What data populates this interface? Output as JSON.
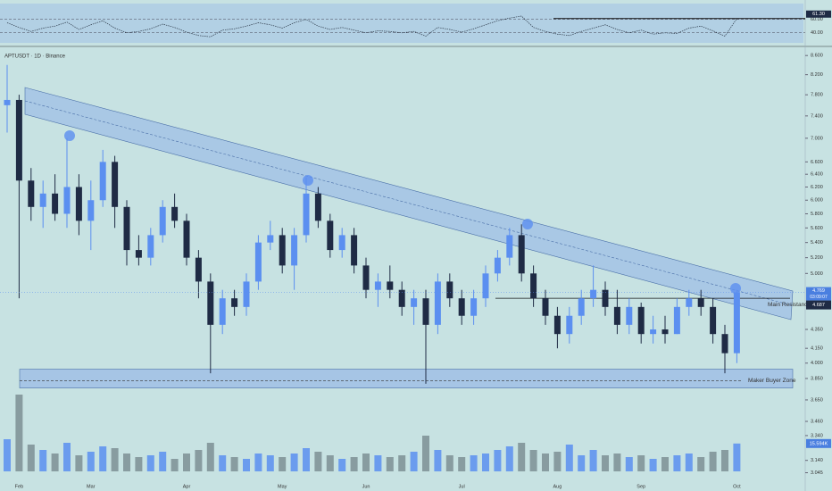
{
  "chart_data": [
    {
      "type": "candlestick",
      "title": "APTUSDT · 1D · Binance",
      "log_scale": true,
      "categories": [
        null,
        "Feb",
        null,
        null,
        null,
        null,
        null,
        "Mar",
        null,
        null,
        null,
        null,
        null,
        null,
        null,
        "Apr",
        null,
        null,
        null,
        null,
        null,
        null,
        null,
        "May",
        null,
        null,
        null,
        null,
        null,
        null,
        "Jun",
        null,
        null,
        null,
        null,
        null,
        null,
        null,
        "Jul",
        null,
        null,
        null,
        null,
        null,
        null,
        null,
        "Aug",
        null,
        null,
        null,
        null,
        null,
        null,
        "Sep",
        null,
        null,
        null,
        null,
        null,
        null,
        null,
        "Oct"
      ],
      "open": [
        7.6,
        7.7,
        6.3,
        5.9,
        6.1,
        5.8,
        6.2,
        5.7,
        6.0,
        6.6,
        5.9,
        5.3,
        5.2,
        5.5,
        5.9,
        5.7,
        5.2,
        4.9,
        4.4,
        4.7,
        4.6,
        4.9,
        5.4,
        5.5,
        5.1,
        5.5,
        6.1,
        5.7,
        5.3,
        5.5,
        5.1,
        4.8,
        4.9,
        4.8,
        4.6,
        4.7,
        4.4,
        4.9,
        4.7,
        4.5,
        4.7,
        5.0,
        5.2,
        5.5,
        5.0,
        4.7,
        4.5,
        4.3,
        4.5,
        4.7,
        4.8,
        4.6,
        4.4,
        4.6,
        4.3,
        4.35,
        4.3,
        4.6,
        4.7,
        4.6,
        4.3,
        4.1
      ],
      "high": [
        8.4,
        7.8,
        6.5,
        6.3,
        6.4,
        7.0,
        6.4,
        6.3,
        6.8,
        6.7,
        6.0,
        5.5,
        5.6,
        6.0,
        6.1,
        5.8,
        5.3,
        5.0,
        4.8,
        4.8,
        5.0,
        5.5,
        5.7,
        5.6,
        5.6,
        6.35,
        6.2,
        5.8,
        5.6,
        5.6,
        5.2,
        5.0,
        5.1,
        4.9,
        4.8,
        4.8,
        5.0,
        5.0,
        4.8,
        4.8,
        5.1,
        5.3,
        5.6,
        5.65,
        5.1,
        4.8,
        4.6,
        4.6,
        4.8,
        5.1,
        4.9,
        4.8,
        4.7,
        4.65,
        4.5,
        4.5,
        4.7,
        4.8,
        4.8,
        4.7,
        4.4,
        4.8
      ],
      "low": [
        7.1,
        4.7,
        5.7,
        5.6,
        5.7,
        5.6,
        5.5,
        5.3,
        5.9,
        5.6,
        5.1,
        5.1,
        5.1,
        5.4,
        5.6,
        5.1,
        4.7,
        3.9,
        4.3,
        4.5,
        4.5,
        4.8,
        5.3,
        5.0,
        4.8,
        5.4,
        5.6,
        5.2,
        5.2,
        5.0,
        4.7,
        4.6,
        4.7,
        4.5,
        4.4,
        3.8,
        4.3,
        4.6,
        4.4,
        4.4,
        4.6,
        4.9,
        5.1,
        4.9,
        4.6,
        4.4,
        4.15,
        4.2,
        4.4,
        4.6,
        4.5,
        4.3,
        4.3,
        4.2,
        4.2,
        4.2,
        4.3,
        4.5,
        4.5,
        4.2,
        3.9,
        4.0
      ],
      "close": [
        7.7,
        6.3,
        5.9,
        6.1,
        5.8,
        6.2,
        5.7,
        6.0,
        6.6,
        5.9,
        5.3,
        5.2,
        5.5,
        5.9,
        5.7,
        5.2,
        4.9,
        4.4,
        4.7,
        4.6,
        4.9,
        5.4,
        5.5,
        5.1,
        5.5,
        6.1,
        5.7,
        5.3,
        5.5,
        5.1,
        4.8,
        4.9,
        4.8,
        4.6,
        4.7,
        4.4,
        4.9,
        4.7,
        4.5,
        4.7,
        5.0,
        5.2,
        5.5,
        5.0,
        4.7,
        4.5,
        4.3,
        4.5,
        4.7,
        4.8,
        4.6,
        4.4,
        4.6,
        4.3,
        4.35,
        4.3,
        4.6,
        4.7,
        4.6,
        4.3,
        4.1,
        4.769
      ],
      "up_color": "#5b8ff0",
      "down_color": "#1f2b45",
      "ylim": [
        2.975,
        8.7
      ],
      "yticks": [
        {
          "value": 8.6,
          "label": "8.600"
        },
        {
          "value": 8.2,
          "label": "8.200"
        },
        {
          "value": 7.8,
          "label": "7.800"
        },
        {
          "value": 7.4,
          "label": "7.400"
        },
        {
          "value": 7.0,
          "label": "7.000"
        },
        {
          "value": 6.6,
          "label": "6.600"
        },
        {
          "value": 6.4,
          "label": "6.400"
        },
        {
          "value": 6.2,
          "label": "6.200"
        },
        {
          "value": 6.0,
          "label": "6.000"
        },
        {
          "value": 5.8,
          "label": "5.800"
        },
        {
          "value": 5.6,
          "label": "5.600"
        },
        {
          "value": 5.4,
          "label": "5.400"
        },
        {
          "value": 5.2,
          "label": "5.200"
        },
        {
          "value": 5.0,
          "label": "5.000"
        },
        {
          "value": 4.35,
          "label": "4.350"
        },
        {
          "value": 4.15,
          "label": "4.150"
        },
        {
          "value": 4.0,
          "label": "4.000"
        },
        {
          "value": 3.85,
          "label": "3.850"
        },
        {
          "value": 3.65,
          "label": "3.650"
        },
        {
          "value": 3.46,
          "label": "3.460"
        },
        {
          "value": 3.34,
          "label": "3.340"
        },
        {
          "value": 3.14,
          "label": "3.140"
        },
        {
          "value": 3.045,
          "label": "3.045"
        }
      ],
      "current_price": {
        "value": 4.769,
        "label": "4.769"
      },
      "countdown": "03:09:07",
      "ma_value": {
        "value": 4.687,
        "label": "4.687"
      },
      "resistance": {
        "label": "Main Resistance",
        "value": 4.7
      },
      "support_zone": {
        "label": "Maker Buyer Zone",
        "low": 3.76,
        "high": 3.94,
        "mid": 3.83
      }
    },
    {
      "type": "bar",
      "name": "volume",
      "values": [
        18000,
        43000,
        15000,
        12000,
        10000,
        16000,
        9000,
        11000,
        14000,
        13000,
        10000,
        8000,
        9000,
        11000,
        7000,
        10000,
        12000,
        16000,
        9000,
        8000,
        7000,
        10000,
        9000,
        8000,
        10000,
        13000,
        11000,
        9000,
        7000,
        8000,
        10000,
        9000,
        8000,
        9000,
        11000,
        20000,
        12000,
        9000,
        8000,
        9000,
        10000,
        12000,
        14000,
        16000,
        12000,
        10000,
        11000,
        15000,
        9000,
        12000,
        9000,
        10000,
        8000,
        9000,
        7000,
        8000,
        9000,
        10000,
        8000,
        11000,
        12000,
        15594
      ],
      "up_color": "#5b8ff0",
      "down_color": "#7d8f94",
      "ylim": [
        0,
        50000
      ],
      "current": {
        "value": 15594,
        "label": "15.594K"
      }
    },
    {
      "type": "line",
      "name": "RSI",
      "color": "#2d3a4a",
      "values": [
        55,
        48,
        42,
        47,
        50,
        56,
        45,
        52,
        58,
        47,
        40,
        42,
        46,
        53,
        48,
        41,
        36,
        34,
        44,
        46,
        50,
        55,
        52,
        47,
        55,
        60,
        50,
        45,
        48,
        44,
        40,
        43,
        42,
        40,
        42,
        35,
        48,
        45,
        41,
        46,
        52,
        58,
        62,
        65,
        48,
        42,
        38,
        36,
        42,
        47,
        52,
        45,
        40,
        44,
        38,
        40,
        39,
        47,
        50,
        43,
        35,
        61.3
      ],
      "ylim": [
        25,
        85
      ],
      "yticks": [
        {
          "value": 60,
          "label": "60.00"
        },
        {
          "value": 40,
          "label": "40.00"
        }
      ],
      "current": {
        "value": 61.3,
        "label": "61.30"
      }
    }
  ]
}
